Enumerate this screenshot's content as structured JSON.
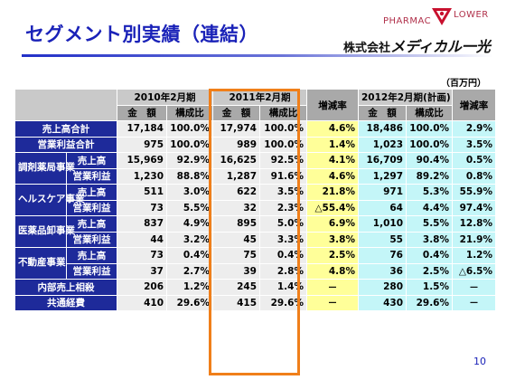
{
  "title": "セグメント別実績（連結）",
  "logo": {
    "pharmac": "PHARMAC",
    "lower": "LOWER",
    "company_prefix": "株式会社",
    "company_brand": "メディカル一光"
  },
  "unit": "（百万円）",
  "headers": {
    "period_2010": "2010年2月期",
    "period_2011": "2011年2月期",
    "period_2012": "2012年2月期(計画)",
    "amount": "金　額",
    "ratio": "構成比",
    "change": "増減率"
  },
  "rows": [
    {
      "group": "売上高合計",
      "sub": "",
      "v2010": "17,184",
      "r2010": "100.0%",
      "v2011": "17,974",
      "r2011": "100.0%",
      "chg": "4.6%",
      "v2012": "18,486",
      "r2012": "100.0%",
      "chg2012": "2.9%"
    },
    {
      "group": "営業利益合計",
      "sub": "",
      "v2010": "975",
      "r2010": "100.0%",
      "v2011": "989",
      "r2011": "100.0%",
      "chg": "1.4%",
      "v2012": "1,023",
      "r2012": "100.0%",
      "chg2012": "3.5%"
    },
    {
      "group": "調剤薬局事業",
      "sub": "売上高",
      "v2010": "15,969",
      "r2010": "92.9%",
      "v2011": "16,625",
      "r2011": "92.5%",
      "chg": "4.1%",
      "v2012": "16,709",
      "r2012": "90.4%",
      "chg2012": "0.5%"
    },
    {
      "group": "",
      "sub": "営業利益",
      "v2010": "1,230",
      "r2010": "88.8%",
      "v2011": "1,287",
      "r2011": "91.6%",
      "chg": "4.6%",
      "v2012": "1,297",
      "r2012": "89.2%",
      "chg2012": "0.8%"
    },
    {
      "group": "ヘルスケア事業",
      "sub": "売上高",
      "v2010": "511",
      "r2010": "3.0%",
      "v2011": "622",
      "r2011": "3.5%",
      "chg": "21.8%",
      "v2012": "971",
      "r2012": "5.3%",
      "chg2012": "55.9%"
    },
    {
      "group": "",
      "sub": "営業利益",
      "v2010": "73",
      "r2010": "5.5%",
      "v2011": "32",
      "r2011": "2.3%",
      "chg": "△55.4%",
      "v2012": "64",
      "r2012": "4.4%",
      "chg2012": "97.4%"
    },
    {
      "group": "医薬品卸事業",
      "sub": "売上高",
      "v2010": "837",
      "r2010": "4.9%",
      "v2011": "895",
      "r2011": "5.0%",
      "chg": "6.9%",
      "v2012": "1,010",
      "r2012": "5.5%",
      "chg2012": "12.8%"
    },
    {
      "group": "",
      "sub": "営業利益",
      "v2010": "44",
      "r2010": "3.2%",
      "v2011": "45",
      "r2011": "3.3%",
      "chg": "3.8%",
      "v2012": "55",
      "r2012": "3.8%",
      "chg2012": "21.9%"
    },
    {
      "group": "不動産事業",
      "sub": "売上高",
      "v2010": "73",
      "r2010": "0.4%",
      "v2011": "75",
      "r2011": "0.4%",
      "chg": "2.5%",
      "v2012": "76",
      "r2012": "0.4%",
      "chg2012": "1.2%"
    },
    {
      "group": "",
      "sub": "営業利益",
      "v2010": "37",
      "r2010": "2.7%",
      "v2011": "39",
      "r2011": "2.8%",
      "chg": "4.8%",
      "v2012": "36",
      "r2012": "2.5%",
      "chg2012": "△6.5%"
    },
    {
      "group": "内部売上相殺",
      "sub": "",
      "v2010": "206",
      "r2010": "1.2%",
      "v2011": "245",
      "r2011": "1.4%",
      "chg": "－",
      "v2012": "280",
      "r2012": "1.5%",
      "chg2012": "－"
    },
    {
      "group": "共通経費",
      "sub": "",
      "v2010": "410",
      "r2010": "29.6%",
      "v2011": "415",
      "r2011": "29.6%",
      "chg": "－",
      "v2012": "430",
      "r2012": "29.6%",
      "chg2012": "－"
    }
  ],
  "page_number": "10"
}
